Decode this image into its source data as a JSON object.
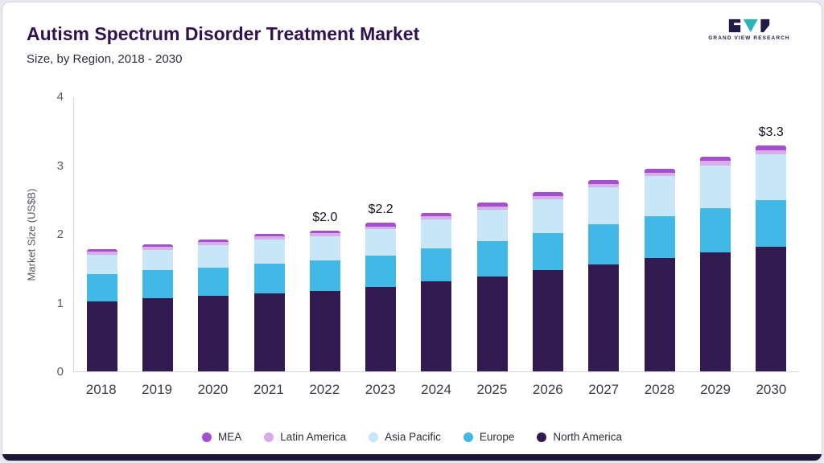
{
  "header": {
    "title": "Autism Spectrum Disorder Treatment Market",
    "subtitle": "Size, by Region, 2018 - 2030",
    "logo_text": "GRAND VIEW RESEARCH"
  },
  "chart_data": {
    "type": "bar",
    "stacked": true,
    "title": "Autism Spectrum Disorder Treatment Market Size, by Region, 2018 - 2030",
    "xlabel": "",
    "ylabel": "Market Size (US$B)",
    "ylim": [
      0,
      4
    ],
    "y_ticks": [
      0,
      1,
      2,
      3,
      4
    ],
    "grid": false,
    "legend_position": "bottom",
    "categories": [
      "2018",
      "2019",
      "2020",
      "2021",
      "2022",
      "2023",
      "2024",
      "2025",
      "2026",
      "2027",
      "2028",
      "2029",
      "2030"
    ],
    "series": [
      {
        "key": "north_america",
        "name": "North America",
        "color": "#321b50",
        "values": [
          1.02,
          1.07,
          1.1,
          1.14,
          1.17,
          1.23,
          1.31,
          1.38,
          1.47,
          1.56,
          1.65,
          1.73,
          1.81
        ]
      },
      {
        "key": "europe",
        "name": "Europe",
        "color": "#42b8e6",
        "values": [
          0.4,
          0.4,
          0.41,
          0.43,
          0.44,
          0.46,
          0.48,
          0.52,
          0.54,
          0.58,
          0.61,
          0.64,
          0.68
        ]
      },
      {
        "key": "asia_pacific",
        "name": "Asia Pacific",
        "color": "#c7e7f8",
        "values": [
          0.28,
          0.3,
          0.33,
          0.35,
          0.36,
          0.38,
          0.42,
          0.45,
          0.49,
          0.54,
          0.58,
          0.63,
          0.67
        ]
      },
      {
        "key": "latin_america",
        "name": "Latin America",
        "color": "#d9aee6",
        "values": [
          0.04,
          0.04,
          0.04,
          0.04,
          0.04,
          0.04,
          0.05,
          0.05,
          0.05,
          0.05,
          0.05,
          0.06,
          0.06
        ]
      },
      {
        "key": "mea",
        "name": "MEA",
        "color": "#a44fd0",
        "values": [
          0.04,
          0.04,
          0.04,
          0.04,
          0.04,
          0.05,
          0.05,
          0.05,
          0.06,
          0.05,
          0.06,
          0.06,
          0.07
        ]
      }
    ],
    "annotations": [
      "",
      "",
      "",
      "",
      "$2.0",
      "$2.2",
      "",
      "",
      "",
      "",
      "",
      "",
      "$3.3"
    ],
    "legend_order": [
      "mea",
      "latin_america",
      "asia_pacific",
      "europe",
      "north_america"
    ]
  }
}
